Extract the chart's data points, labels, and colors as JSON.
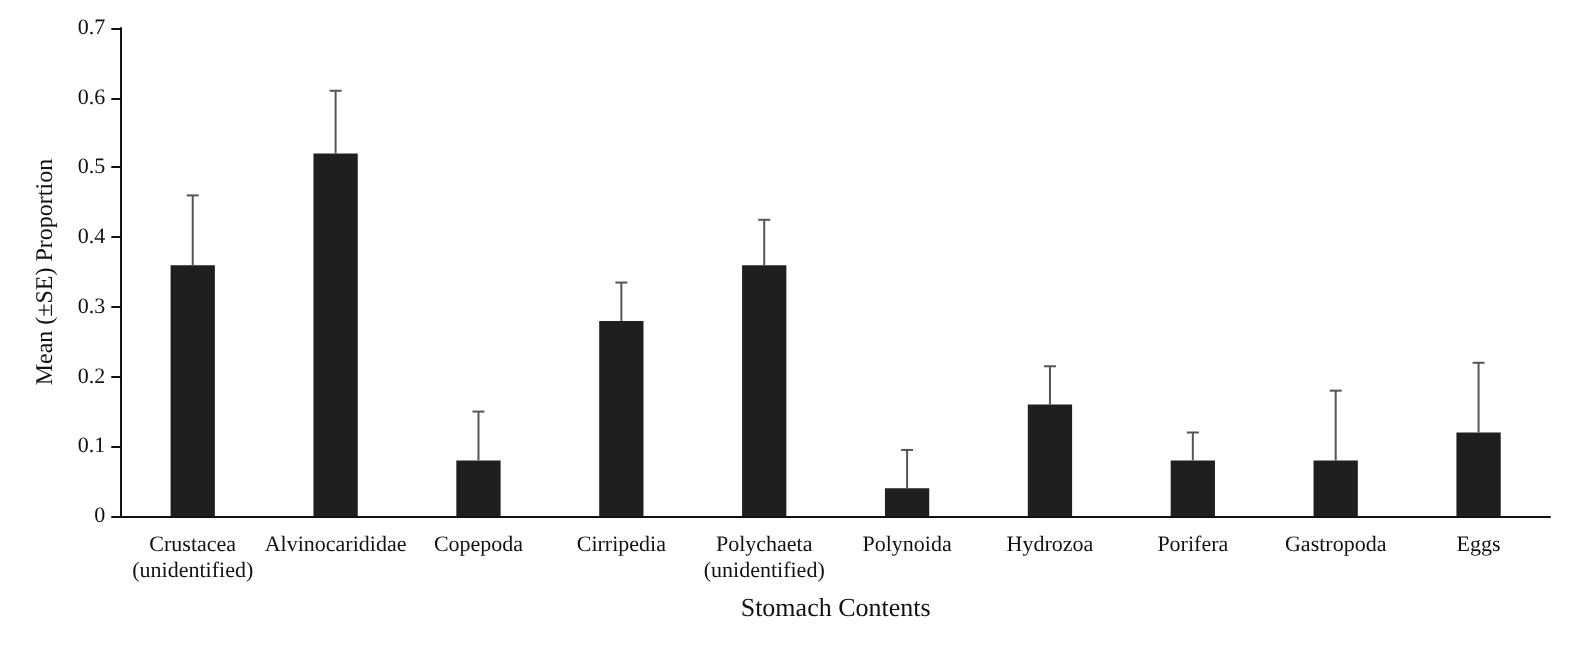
{
  "chart_data": {
    "type": "bar",
    "xlabel": "Stomach Contents",
    "ylabel": "Mean (±SE) Proportion",
    "categories": [
      "Crustacea\n(unidentified)",
      "Alvinocarididae",
      "Copepoda",
      "Cirripedia",
      "Polychaeta\n(unidentified)",
      "Polynoida",
      "Hydrozoa",
      "Porifera",
      "Gastropoda",
      "Eggs"
    ],
    "values": [
      0.36,
      0.52,
      0.08,
      0.28,
      0.36,
      0.04,
      0.16,
      0.08,
      0.08,
      0.12
    ],
    "errors": [
      [
        0.36,
        0.46
      ],
      [
        0.52,
        0.61
      ],
      [
        0.08,
        0.15
      ],
      [
        0.28,
        0.335
      ],
      [
        0.36,
        0.425
      ],
      [
        0.04,
        0.095
      ],
      [
        0.16,
        0.215
      ],
      [
        0.08,
        0.12
      ],
      [
        0.08,
        0.18
      ],
      [
        0.12,
        0.22
      ]
    ],
    "color": "#1f1f1f",
    "ylim": [
      0,
      0.7
    ],
    "yticks": [
      0,
      0.1,
      0.2,
      0.3,
      0.4,
      0.5,
      0.6,
      0.7
    ],
    "grid": false
  }
}
